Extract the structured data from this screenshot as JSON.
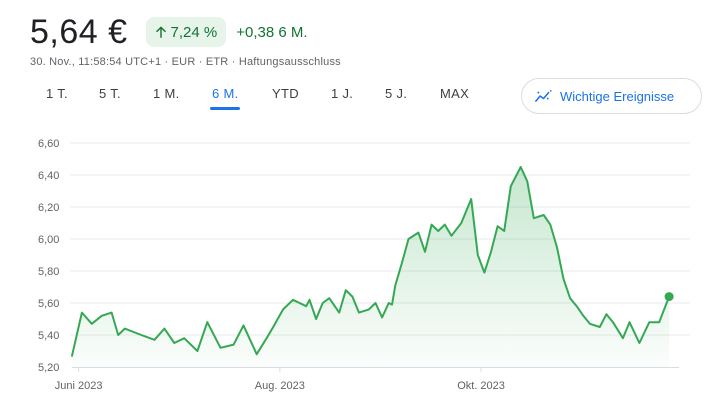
{
  "quote": {
    "price": "5,64 €",
    "change_percent": "7,24 %",
    "change_abs": "+0,38 6 M.",
    "meta": "30. Nov., 11:58:54 UTC+1 · EUR · ETR · Haftungsausschluss"
  },
  "ranges": [
    {
      "label": "1 T.",
      "active": false
    },
    {
      "label": "5 T.",
      "active": false
    },
    {
      "label": "1 M.",
      "active": false
    },
    {
      "label": "6 M.",
      "active": true
    },
    {
      "label": "YTD",
      "active": false
    },
    {
      "label": "1 J.",
      "active": false
    },
    {
      "label": "5 J.",
      "active": false
    },
    {
      "label": "MAX",
      "active": false
    }
  ],
  "events_button": {
    "label": "Wichtige Ereignisse",
    "icon": "insights-icon"
  },
  "colors": {
    "positive": "#137333",
    "line": "#34a853",
    "accent": "#1a73e8"
  },
  "chart_data": {
    "type": "area",
    "title": "",
    "xlabel": "",
    "ylabel": "",
    "ylim": [
      5.2,
      6.6
    ],
    "yticks": [
      "6,60",
      "6,40",
      "6,20",
      "6,00",
      "5,80",
      "5,60",
      "5,40",
      "5,20"
    ],
    "yticks_values": [
      6.6,
      6.4,
      6.2,
      6.0,
      5.8,
      5.6,
      5.4,
      5.2
    ],
    "xlim": [
      "2023-05-30",
      "2023-11-30"
    ],
    "xticks": [
      {
        "label": "Juni 2023",
        "date": "2023-06-01"
      },
      {
        "label": "Aug. 2023",
        "date": "2023-08-01"
      },
      {
        "label": "Okt. 2023",
        "date": "2023-10-01"
      }
    ],
    "grid": "horizontal",
    "series": [
      {
        "values": [
          [
            "2023-05-30",
            5.27
          ],
          [
            "2023-06-02",
            5.54
          ],
          [
            "2023-06-05",
            5.47
          ],
          [
            "2023-06-08",
            5.52
          ],
          [
            "2023-06-11",
            5.54
          ],
          [
            "2023-06-13",
            5.4
          ],
          [
            "2023-06-15",
            5.44
          ],
          [
            "2023-06-20",
            5.4
          ],
          [
            "2023-06-24",
            5.37
          ],
          [
            "2023-06-27",
            5.44
          ],
          [
            "2023-06-30",
            5.35
          ],
          [
            "2023-07-03",
            5.38
          ],
          [
            "2023-07-07",
            5.3
          ],
          [
            "2023-07-10",
            5.48
          ],
          [
            "2023-07-14",
            5.32
          ],
          [
            "2023-07-18",
            5.34
          ],
          [
            "2023-07-21",
            5.46
          ],
          [
            "2023-07-25",
            5.28
          ],
          [
            "2023-07-28",
            5.38
          ],
          [
            "2023-07-30",
            5.45
          ],
          [
            "2023-08-02",
            5.56
          ],
          [
            "2023-08-05",
            5.62
          ],
          [
            "2023-08-07",
            5.6
          ],
          [
            "2023-08-09",
            5.58
          ],
          [
            "2023-08-10",
            5.62
          ],
          [
            "2023-08-12",
            5.5
          ],
          [
            "2023-08-14",
            5.6
          ],
          [
            "2023-08-16",
            5.63
          ],
          [
            "2023-08-19",
            5.54
          ],
          [
            "2023-08-21",
            5.68
          ],
          [
            "2023-08-23",
            5.64
          ],
          [
            "2023-08-25",
            5.54
          ],
          [
            "2023-08-28",
            5.56
          ],
          [
            "2023-08-30",
            5.6
          ],
          [
            "2023-09-01",
            5.51
          ],
          [
            "2023-09-03",
            5.6
          ],
          [
            "2023-09-04",
            5.59
          ],
          [
            "2023-09-05",
            5.71
          ],
          [
            "2023-09-07",
            5.85
          ],
          [
            "2023-09-09",
            6.0
          ],
          [
            "2023-09-12",
            6.04
          ],
          [
            "2023-09-14",
            5.92
          ],
          [
            "2023-09-16",
            6.09
          ],
          [
            "2023-09-18",
            6.05
          ],
          [
            "2023-09-20",
            6.09
          ],
          [
            "2023-09-22",
            6.02
          ],
          [
            "2023-09-25",
            6.1
          ],
          [
            "2023-09-28",
            6.25
          ],
          [
            "2023-09-30",
            5.9
          ],
          [
            "2023-10-02",
            5.79
          ],
          [
            "2023-10-04",
            5.92
          ],
          [
            "2023-10-06",
            6.08
          ],
          [
            "2023-10-08",
            6.05
          ],
          [
            "2023-10-10",
            6.33
          ],
          [
            "2023-10-13",
            6.45
          ],
          [
            "2023-10-15",
            6.36
          ],
          [
            "2023-10-17",
            6.13
          ],
          [
            "2023-10-20",
            6.15
          ],
          [
            "2023-10-22",
            6.09
          ],
          [
            "2023-10-24",
            5.95
          ],
          [
            "2023-10-26",
            5.75
          ],
          [
            "2023-10-28",
            5.63
          ],
          [
            "2023-10-30",
            5.58
          ],
          [
            "2023-11-01",
            5.52
          ],
          [
            "2023-11-03",
            5.47
          ],
          [
            "2023-11-06",
            5.45
          ],
          [
            "2023-11-08",
            5.53
          ],
          [
            "2023-11-10",
            5.48
          ],
          [
            "2023-11-13",
            5.38
          ],
          [
            "2023-11-15",
            5.48
          ],
          [
            "2023-11-18",
            5.35
          ],
          [
            "2023-11-21",
            5.48
          ],
          [
            "2023-11-24",
            5.48
          ],
          [
            "2023-11-27",
            5.64
          ]
        ]
      }
    ]
  }
}
